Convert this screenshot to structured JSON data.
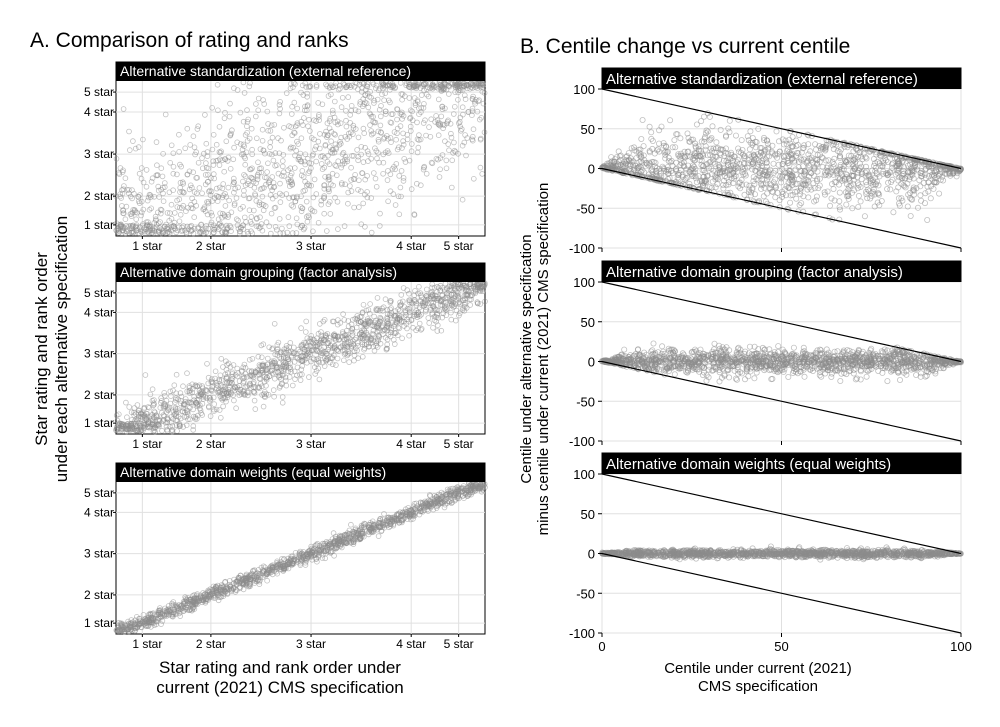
{
  "figure": {
    "panel_a_title": "A. Comparison of rating and ranks",
    "panel_b_title": "B. Centile change vs current centile"
  },
  "chart_data": [
    {
      "type": "scatter",
      "panel": "A",
      "ylabel": [
        "Star rating and rank order",
        "under each alternative specification"
      ],
      "xlabel": [
        "Star rating and rank order under",
        "current (2021) CMS specification"
      ],
      "axis_ticks": [
        {
          "label": "1 star",
          "value": 0.5
        },
        {
          "label": "2 star",
          "value": 1.8
        },
        {
          "label": "3 star",
          "value": 3.7
        },
        {
          "label": "4 star",
          "value": 5.6
        },
        {
          "label": "5 star",
          "value": 6.5
        }
      ],
      "xlim": [
        0,
        7
      ],
      "ylim": [
        0,
        7
      ],
      "grid": true,
      "subplots": [
        {
          "title": "Alternative standardization (external reference)",
          "spread": 2.0,
          "correlation": "weak"
        },
        {
          "title": "Alternative domain grouping (factor analysis)",
          "spread": 0.55,
          "correlation": "moderate"
        },
        {
          "title": "Alternative domain weights (equal weights)",
          "spread": 0.16,
          "correlation": "strong"
        }
      ]
    },
    {
      "type": "scatter",
      "panel": "B",
      "ylabel": [
        "Centile under alternative specification",
        "minus centile under current (2021) CMS specification"
      ],
      "xlabel": [
        "Centile under current (2021)",
        "CMS specification"
      ],
      "x_ticks": [
        0,
        50,
        100
      ],
      "y_ticks": [
        100,
        50,
        0,
        -50,
        -100
      ],
      "xlim": [
        0,
        100
      ],
      "ylim": [
        -100,
        100
      ],
      "bound_lines": [
        {
          "from": [
            0,
            100
          ],
          "to": [
            100,
            0
          ]
        },
        {
          "from": [
            0,
            0
          ],
          "to": [
            100,
            -100
          ]
        }
      ],
      "grid": true,
      "subplots": [
        {
          "title": "Alternative standardization (external reference)",
          "spread_sd": 24
        },
        {
          "title": "Alternative domain grouping (factor analysis)",
          "spread_sd": 8
        },
        {
          "title": "Alternative domain weights (equal weights)",
          "spread_sd": 2.5
        }
      ]
    }
  ]
}
